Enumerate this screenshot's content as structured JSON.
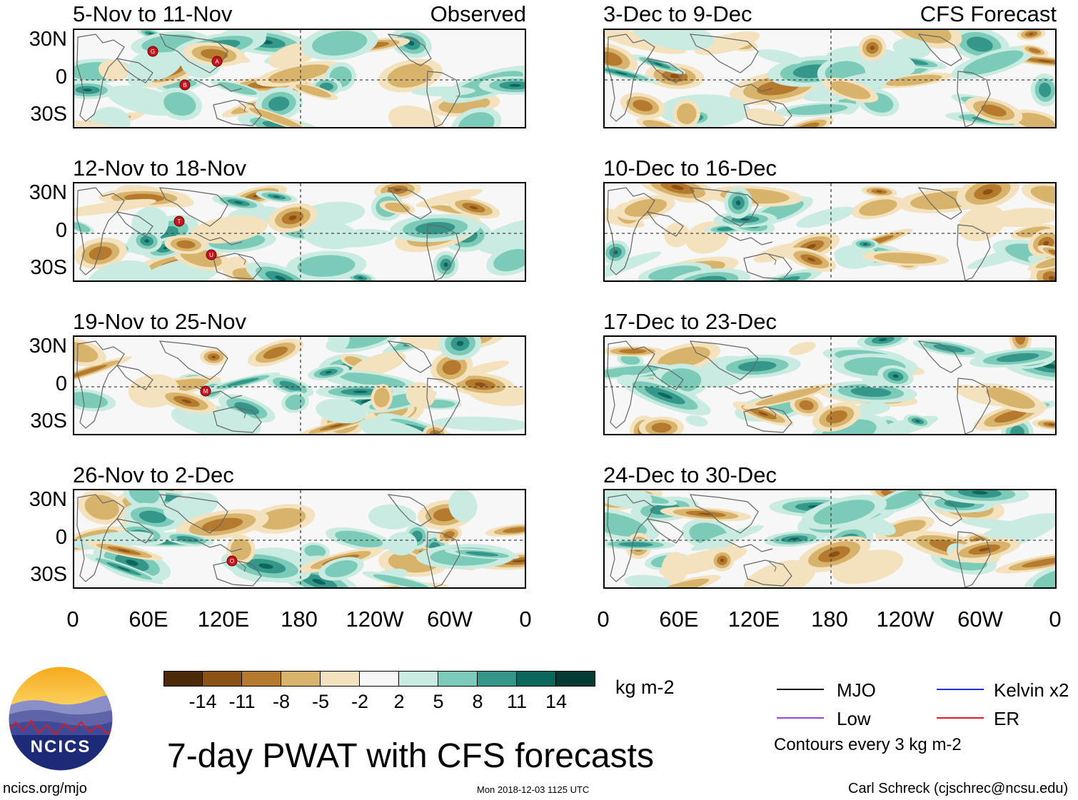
{
  "panels": [
    {
      "id": "p1",
      "title": "5-Nov to 11-Nov",
      "label": "Observed",
      "storms": [
        "G",
        "B",
        "A"
      ]
    },
    {
      "id": "p2",
      "title": "12-Nov to 18-Nov",
      "label": "",
      "storms": [
        "T",
        "U"
      ]
    },
    {
      "id": "p3",
      "title": "19-Nov to 25-Nov",
      "label": "",
      "storms": [
        "M"
      ]
    },
    {
      "id": "p4",
      "title": "26-Nov to 2-Dec",
      "label": "",
      "storms": [
        "O"
      ]
    },
    {
      "id": "p5",
      "title": "3-Dec to 9-Dec",
      "label": "CFS Forecast",
      "storms": []
    },
    {
      "id": "p6",
      "title": "10-Dec to 16-Dec",
      "label": "",
      "storms": []
    },
    {
      "id": "p7",
      "title": "17-Dec to 23-Dec",
      "label": "",
      "storms": []
    },
    {
      "id": "p8",
      "title": "24-Dec to 30-Dec",
      "label": "",
      "storms": []
    }
  ],
  "axes": {
    "y_ticks": [
      "30N",
      "0",
      "30S"
    ],
    "x_ticks": [
      "0",
      "60E",
      "120E",
      "180",
      "120W",
      "60W",
      "0"
    ]
  },
  "colorbar": {
    "labels": [
      "-14",
      "-11",
      "-8",
      "-5",
      "-2",
      "2",
      "5",
      "8",
      "11",
      "14"
    ],
    "colors": [
      "#4a2a08",
      "#8a5214",
      "#b67a2e",
      "#d7b36c",
      "#f3e2bd",
      "#f7f7f7",
      "#c9ebe1",
      "#7ccbb8",
      "#34978a",
      "#0b665c",
      "#053b33"
    ],
    "units": "kg m-2"
  },
  "title": "7-day PWAT with CFS forecasts",
  "legend": {
    "items": [
      {
        "label": "MJO",
        "color": "#000000"
      },
      {
        "label": "Kelvin x2",
        "color": "#1c2ee0"
      },
      {
        "label": "Low",
        "color": "#a040e0"
      },
      {
        "label": "ER",
        "color": "#e01c1c"
      }
    ],
    "note": "Contours every 3 kg m-2"
  },
  "logo": {
    "text": "NCICS"
  },
  "footer": {
    "left": "ncics.org/mjo",
    "center": "Mon 2018-12-03 1125 UTC",
    "right": "Carl Schreck (cjschrec@ncsu.edu)"
  },
  "chart_data": {
    "type": "heatmap",
    "variable": "7-day precipitable water (PWAT) anomaly",
    "units": "kg m-2",
    "x_axis": {
      "range": [
        0,
        360
      ],
      "ticks": [
        "0",
        "60E",
        "120E",
        "180",
        "120W",
        "60W",
        "0"
      ]
    },
    "y_axis": {
      "range": [
        -40,
        40
      ],
      "ticks": [
        "30N",
        "0",
        "30S"
      ]
    },
    "color_levels": [
      -14,
      -11,
      -8,
      -5,
      -2,
      2,
      5,
      8,
      11,
      14
    ],
    "panels": [
      "5-Nov to 11-Nov",
      "12-Nov to 18-Nov",
      "19-Nov to 25-Nov",
      "26-Nov to 2-Dec",
      "3-Dec to 9-Dec",
      "10-Dec to 16-Dec",
      "17-Dec to 23-Dec",
      "24-Dec to 30-Dec"
    ]
  }
}
